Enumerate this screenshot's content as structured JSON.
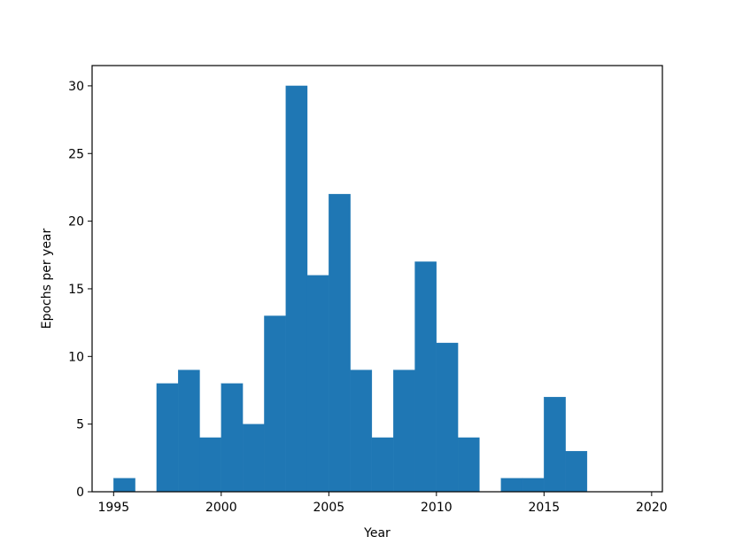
{
  "chart_data": {
    "type": "bar",
    "title": "",
    "xlabel": "Year",
    "ylabel": "Epochs per year",
    "xlim": [
      1994,
      2020.5
    ],
    "ylim": [
      0,
      31.5
    ],
    "xticks": [
      1995,
      2000,
      2005,
      2010,
      2015,
      2020
    ],
    "yticks": [
      0,
      5,
      10,
      15,
      20,
      25,
      30
    ],
    "grid": false,
    "bar_color": "#1f77b4",
    "bins": [
      {
        "x0": 1995,
        "x1": 1996,
        "value": 1
      },
      {
        "x0": 1997,
        "x1": 1998,
        "value": 8
      },
      {
        "x0": 1998,
        "x1": 1999,
        "value": 9
      },
      {
        "x0": 1999,
        "x1": 2000,
        "value": 4
      },
      {
        "x0": 2000,
        "x1": 2001,
        "value": 8
      },
      {
        "x0": 2001,
        "x1": 2002,
        "value": 5
      },
      {
        "x0": 2002,
        "x1": 2003,
        "value": 13
      },
      {
        "x0": 2003,
        "x1": 2004,
        "value": 30
      },
      {
        "x0": 2004,
        "x1": 2005,
        "value": 16
      },
      {
        "x0": 2005,
        "x1": 2006,
        "value": 22
      },
      {
        "x0": 2006,
        "x1": 2007,
        "value": 9
      },
      {
        "x0": 2007,
        "x1": 2008,
        "value": 4
      },
      {
        "x0": 2008,
        "x1": 2009,
        "value": 9
      },
      {
        "x0": 2009,
        "x1": 2010,
        "value": 17
      },
      {
        "x0": 2010,
        "x1": 2011,
        "value": 11
      },
      {
        "x0": 2011,
        "x1": 2012,
        "value": 4
      },
      {
        "x0": 2013,
        "x1": 2014,
        "value": 1
      },
      {
        "x0": 2014,
        "x1": 2015,
        "value": 1
      },
      {
        "x0": 2015,
        "x1": 2016,
        "value": 7
      },
      {
        "x0": 2016,
        "x1": 2017,
        "value": 3
      }
    ]
  }
}
